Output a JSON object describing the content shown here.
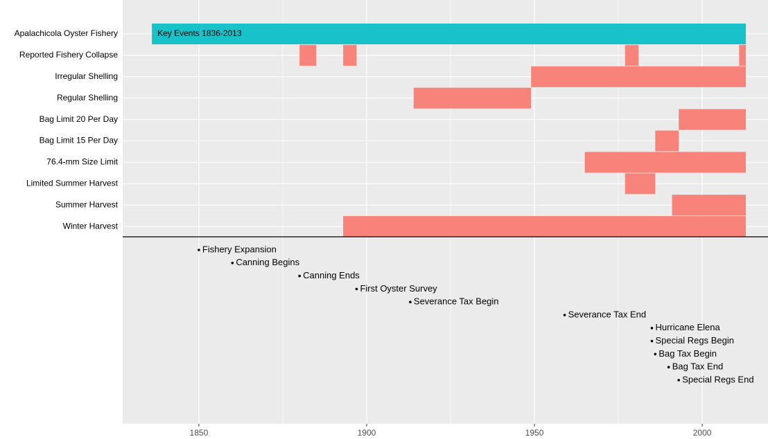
{
  "chart_data": {
    "type": "timeline",
    "annotation": "Key Events 1836-2013",
    "highlight_color": "#17c3c8",
    "bar_color": "#f8837a",
    "rows": [
      {
        "name": "Apalachicola Oyster Fishery",
        "segments": [
          [
            1836,
            2013
          ]
        ],
        "highlight": true
      },
      {
        "name": "Reported Fishery Collapse",
        "segments": [
          [
            1880,
            1885
          ],
          [
            1893,
            1897
          ],
          [
            1977,
            1981
          ],
          [
            2011,
            2013
          ]
        ]
      },
      {
        "name": "Irregular Shelling",
        "segments": [
          [
            1949,
            2013
          ]
        ]
      },
      {
        "name": "Regular Shelling",
        "segments": [
          [
            1914,
            1949
          ]
        ]
      },
      {
        "name": "Bag Limit 20 Per Day",
        "segments": [
          [
            1993,
            2013
          ]
        ]
      },
      {
        "name": "Bag Limit 15 Per Day",
        "segments": [
          [
            1986,
            1993
          ]
        ]
      },
      {
        "name": "76.4-mm Size Limit",
        "segments": [
          [
            1965,
            2013
          ]
        ]
      },
      {
        "name": "Limited Summer Harvest",
        "segments": [
          [
            1977,
            1986
          ]
        ]
      },
      {
        "name": "Summer Harvest",
        "segments": [
          [
            1991,
            2013
          ]
        ]
      },
      {
        "name": "Winter Harvest",
        "segments": [
          [
            1893,
            2013
          ]
        ]
      }
    ],
    "events": [
      {
        "label": "Fishery Expansion",
        "year": 1850
      },
      {
        "label": "Canning Begins",
        "year": 1860
      },
      {
        "label": "Canning Ends",
        "year": 1880
      },
      {
        "label": "First Oyster Survey",
        "year": 1897
      },
      {
        "label": "Severance Tax Begin",
        "year": 1913
      },
      {
        "label": "Severance Tax End",
        "year": 1959
      },
      {
        "label": "Hurricane Elena",
        "year": 1985
      },
      {
        "label": "Special Regs Begin",
        "year": 1985
      },
      {
        "label": "Bag Tax Begin",
        "year": 1986
      },
      {
        "label": "Bag Tax End",
        "year": 1990
      },
      {
        "label": "Special Regs End",
        "year": 1993
      }
    ],
    "xlim": [
      1827.3,
      2019.6
    ],
    "xticks": [
      1850,
      1900,
      1950,
      2000
    ],
    "xticks_minor": [
      1875,
      1925,
      1975
    ],
    "grid": true
  }
}
